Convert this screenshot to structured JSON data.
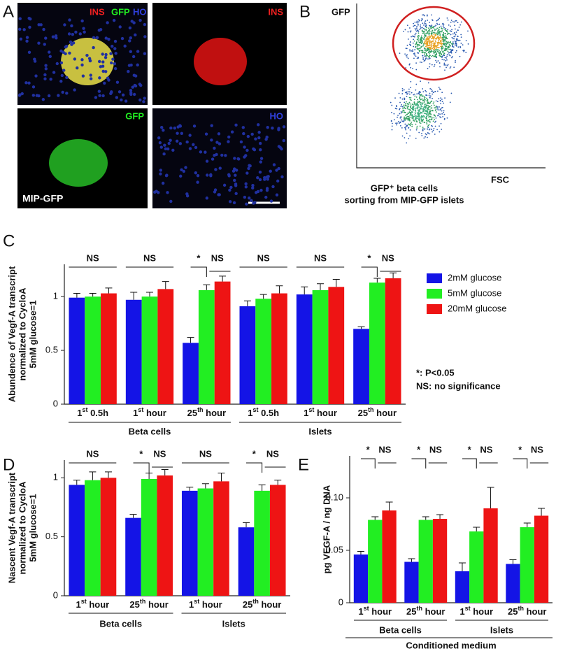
{
  "panel_labels": [
    "A",
    "B",
    "C",
    "D",
    "E"
  ],
  "panel_a": {
    "merge_labels": [
      "INS",
      "GFP",
      "HO"
    ],
    "ins_label": "INS",
    "gfp_label": "GFP",
    "ho_label": "HO",
    "mouse_label": "MIP-GFP"
  },
  "panel_b": {
    "y_label": "GFP",
    "x_label": "FSC",
    "caption": [
      "GFP⁺ beta cells",
      "sorting from MIP-GFP islets"
    ]
  },
  "chart_data": [
    {
      "type": "bar",
      "y_label": [
        "Abundence of Vegf-A transcript",
        "normalized to CycloA",
        "5mM glucose=1"
      ],
      "category_groups": [
        {
          "label": "Beta cells",
          "categories": [
            "1st 0.5h",
            "1st hour",
            "25th hour"
          ]
        },
        {
          "label": "Islets",
          "categories": [
            "1st 0.5h",
            "1st hour",
            "25th hour"
          ]
        }
      ],
      "series": [
        {
          "name": "2mM glucose",
          "color": "#1414e6",
          "values": [
            0.99,
            0.97,
            0.57,
            0.91,
            1.02,
            0.7
          ],
          "errors": [
            0.04,
            0.07,
            0.05,
            0.05,
            0.07,
            0.02
          ]
        },
        {
          "name": "5mM glucose",
          "color": "#22ee22",
          "values": [
            1.0,
            1.0,
            1.06,
            0.98,
            1.06,
            1.13
          ],
          "errors": [
            0.03,
            0.04,
            0.05,
            0.04,
            0.06,
            0.04
          ]
        },
        {
          "name": "20mM glucose",
          "color": "#ee1414",
          "values": [
            1.03,
            1.07,
            1.14,
            1.03,
            1.09,
            1.17
          ],
          "errors": [
            0.05,
            0.07,
            0.05,
            0.07,
            0.07,
            0.05
          ]
        }
      ],
      "annotations": [
        [
          "NS"
        ],
        [
          "NS"
        ],
        [
          "*",
          "NS"
        ],
        [
          "NS"
        ],
        [
          "NS"
        ],
        [
          "*",
          "NS"
        ]
      ],
      "note": [
        "*: P<0.05",
        "NS: no significance"
      ],
      "ylim": [
        0,
        1.3
      ],
      "yticks": [
        0,
        0.5,
        1
      ]
    },
    {
      "type": "bar",
      "y_label": [
        "Nascent Vegf-A transcript",
        "normalized to CycloA",
        "5mM glucose=1"
      ],
      "category_groups": [
        {
          "label": "Beta cells",
          "categories": [
            "1st hour",
            "25th hour"
          ]
        },
        {
          "label": "Islets",
          "categories": [
            "1st hour",
            "25th hour"
          ]
        }
      ],
      "series": [
        {
          "color": "#1414e6",
          "values": [
            0.94,
            0.66,
            0.89,
            0.58
          ],
          "errors": [
            0.04,
            0.03,
            0.03,
            0.04
          ]
        },
        {
          "color": "#22ee22",
          "values": [
            0.98,
            0.99,
            0.91,
            0.89
          ],
          "errors": [
            0.07,
            0.05,
            0.04,
            0.05
          ]
        },
        {
          "color": "#ee1414",
          "values": [
            1.0,
            1.02,
            0.97,
            0.94
          ],
          "errors": [
            0.05,
            0.05,
            0.07,
            0.04
          ]
        }
      ],
      "annotations": [
        [
          "NS"
        ],
        [
          "*",
          "NS"
        ],
        [
          "NS"
        ],
        [
          "*",
          "NS"
        ]
      ],
      "ylim": [
        0,
        1.15
      ],
      "yticks": [
        0,
        0.5,
        1
      ]
    },
    {
      "type": "bar",
      "y_label": [
        "pg VEGF-A / ng DNA"
      ],
      "category_groups": [
        {
          "label": "Beta cells",
          "categories": [
            "1st hour",
            "25th hour"
          ]
        },
        {
          "label": "Islets",
          "categories": [
            "1st hour",
            "25th hour"
          ]
        }
      ],
      "x_group_label": "Conditioned medium",
      "series": [
        {
          "color": "#1414e6",
          "values": [
            0.046,
            0.039,
            0.03,
            0.037
          ],
          "errors": [
            0.003,
            0.003,
            0.008,
            0.004
          ]
        },
        {
          "color": "#22ee22",
          "values": [
            0.079,
            0.079,
            0.068,
            0.072
          ],
          "errors": [
            0.003,
            0.003,
            0.004,
            0.004
          ]
        },
        {
          "color": "#ee1414",
          "values": [
            0.088,
            0.08,
            0.09,
            0.083
          ],
          "errors": [
            0.008,
            0.004,
            0.02,
            0.007
          ]
        }
      ],
      "annotations": [
        [
          "*",
          "NS"
        ],
        [
          "*",
          "NS"
        ],
        [
          "*",
          "NS"
        ],
        [
          "*",
          "NS"
        ]
      ],
      "ylim": [
        0,
        0.14
      ],
      "yticks": [
        0,
        0.05,
        {
          "value": 0.1,
          "label": "0.10"
        }
      ]
    }
  ]
}
